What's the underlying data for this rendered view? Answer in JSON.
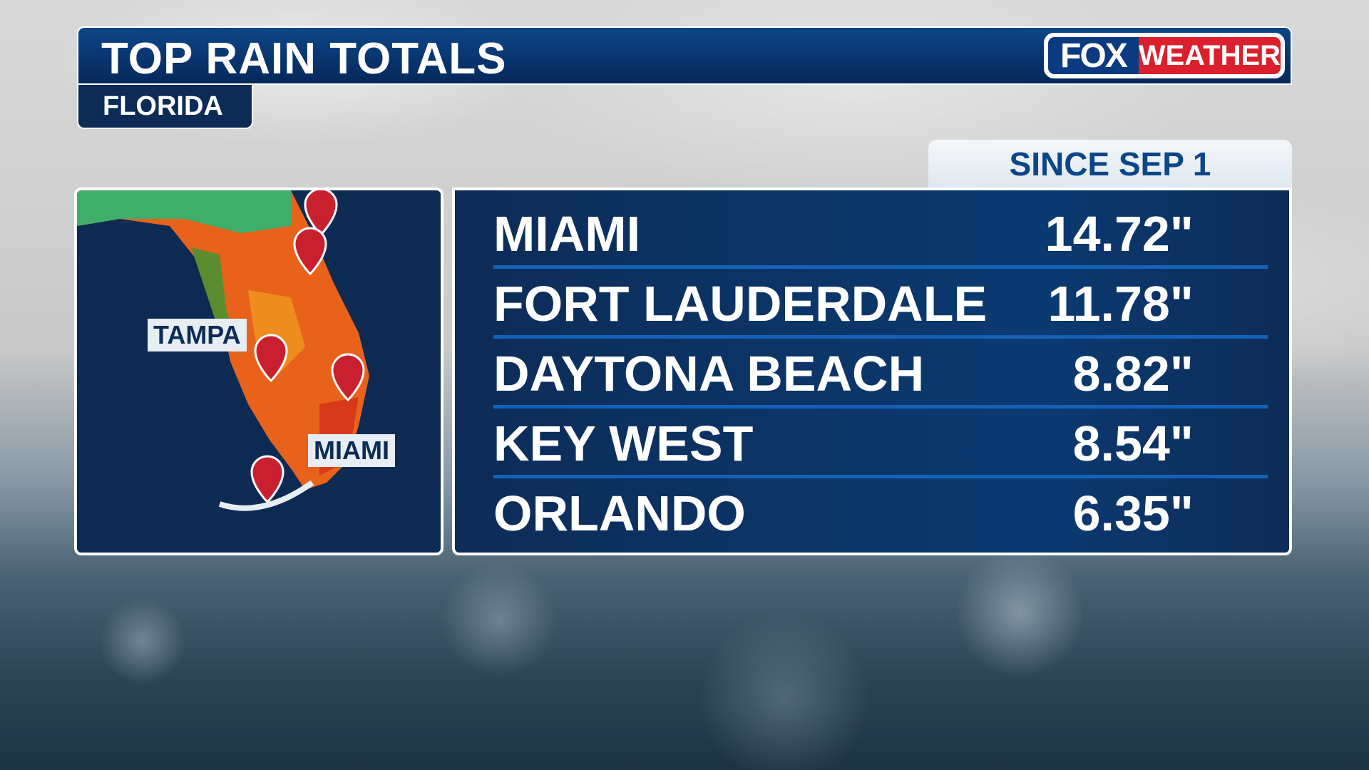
{
  "header": {
    "title": "TOP RAIN TOTALS",
    "region": "FLORIDA",
    "period": "SINCE SEP 1"
  },
  "logo": {
    "part1": "FOX",
    "part2": "WEATHER"
  },
  "map": {
    "labels": [
      "TAMPA",
      "MIAMI"
    ]
  },
  "rows": [
    {
      "city": "MIAMI",
      "total": "14.72\""
    },
    {
      "city": "FORT LAUDERDALE",
      "total": "11.78\""
    },
    {
      "city": "DAYTONA BEACH",
      "total": "8.82\""
    },
    {
      "city": "KEY WEST",
      "total": "8.54\""
    },
    {
      "city": "ORLANDO",
      "total": "6.35\""
    }
  ]
}
